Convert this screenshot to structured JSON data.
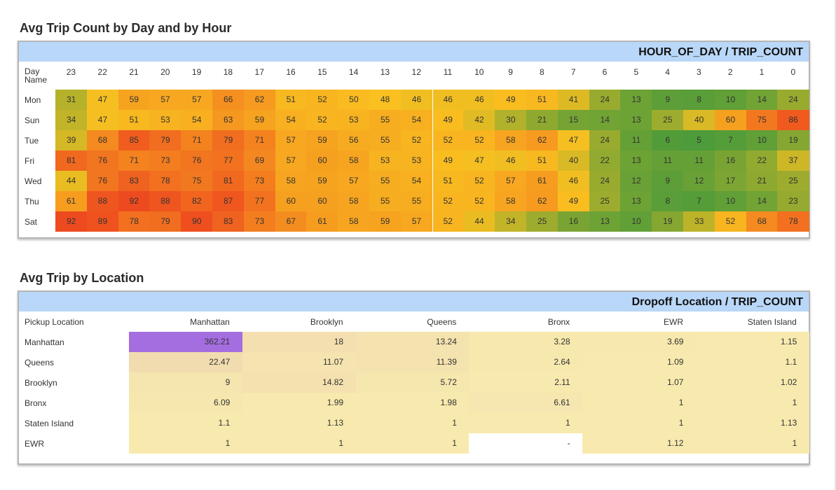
{
  "heatmap": {
    "title": "Avg Trip Count by Day and by Hour",
    "header": "HOUR_OF_DAY / TRIP_COUNT",
    "corner_label_line1": "Day",
    "corner_label_line2": "Name"
  },
  "location": {
    "title": "Avg Trip by Location",
    "header": "Dropoff Location / TRIP_COUNT",
    "corner_label": "Pickup Location"
  },
  "colors": {
    "header_bg": "#b9d7f8",
    "heat_low": "#4d9b3a",
    "heat_mid": "#f9c020",
    "heat_high": "#ee4a1f",
    "loc_highlight": "#a56ee0",
    "loc_base": "#f8eaae"
  },
  "chart_data": [
    {
      "type": "heatmap",
      "title": "Avg Trip Count by Day and by Hour",
      "xlabel": "HOUR_OF_DAY",
      "ylabel": "Day Name",
      "value_label": "TRIP_COUNT",
      "x": [
        "23",
        "22",
        "21",
        "20",
        "19",
        "18",
        "17",
        "16",
        "15",
        "14",
        "13",
        "12",
        "11",
        "10",
        "9",
        "8",
        "7",
        "6",
        "5",
        "4",
        "3",
        "2",
        "1",
        "0"
      ],
      "y": [
        "Mon",
        "Sun",
        "Tue",
        "Fri",
        "Wed",
        "Thu",
        "Sat"
      ],
      "values": [
        [
          31,
          47,
          59,
          57,
          57,
          66,
          62,
          51,
          52,
          50,
          48,
          46,
          46,
          46,
          49,
          51,
          41,
          24,
          13,
          9,
          8,
          10,
          14,
          24
        ],
        [
          34,
          47,
          51,
          53,
          54,
          63,
          59,
          54,
          52,
          53,
          55,
          54,
          49,
          42,
          30,
          21,
          15,
          14,
          13,
          25,
          40,
          60,
          75,
          86
        ],
        [
          39,
          68,
          85,
          79,
          71,
          79,
          71,
          57,
          59,
          56,
          55,
          52,
          52,
          52,
          58,
          62,
          47,
          24,
          11,
          6,
          5,
          7,
          10,
          19
        ],
        [
          81,
          76,
          71,
          73,
          76,
          77,
          69,
          57,
          60,
          58,
          53,
          53,
          49,
          47,
          46,
          51,
          40,
          22,
          13,
          11,
          11,
          16,
          22,
          37
        ],
        [
          44,
          76,
          83,
          78,
          75,
          81,
          73,
          58,
          59,
          57,
          55,
          54,
          51,
          52,
          57,
          61,
          46,
          24,
          12,
          9,
          12,
          17,
          21,
          25
        ],
        [
          61,
          88,
          92,
          88,
          82,
          87,
          77,
          60,
          60,
          58,
          55,
          55,
          52,
          52,
          58,
          62,
          49,
          25,
          13,
          8,
          7,
          10,
          14,
          23
        ],
        [
          92,
          89,
          78,
          79,
          90,
          83,
          73,
          67,
          61,
          58,
          59,
          57,
          52,
          44,
          34,
          25,
          16,
          13,
          10,
          19,
          33,
          52,
          68,
          78
        ]
      ]
    },
    {
      "type": "table",
      "title": "Avg Trip by Location",
      "xlabel": "Dropoff Location",
      "ylabel": "Pickup Location",
      "value_label": "TRIP_COUNT",
      "x": [
        "Manhattan",
        "Brooklyn",
        "Queens",
        "Bronx",
        "EWR",
        "Staten Island"
      ],
      "y": [
        "Manhattan",
        "Queens",
        "Brooklyn",
        "Bronx",
        "Staten Island",
        "EWR"
      ],
      "values": [
        [
          "362.21",
          "18",
          "13.24",
          "3.28",
          "3.69",
          "1.15"
        ],
        [
          "22.47",
          "11.07",
          "11.39",
          "2.64",
          "1.09",
          "1.1"
        ],
        [
          "9",
          "14.82",
          "5.72",
          "2.11",
          "1.07",
          "1.02"
        ],
        [
          "6.09",
          "1.99",
          "1.98",
          "6.61",
          "1",
          "1"
        ],
        [
          "1.1",
          "1.13",
          "1",
          "1",
          "1",
          "1.13"
        ],
        [
          "1",
          "1",
          "1",
          "-",
          "1.12",
          "1"
        ]
      ]
    }
  ]
}
